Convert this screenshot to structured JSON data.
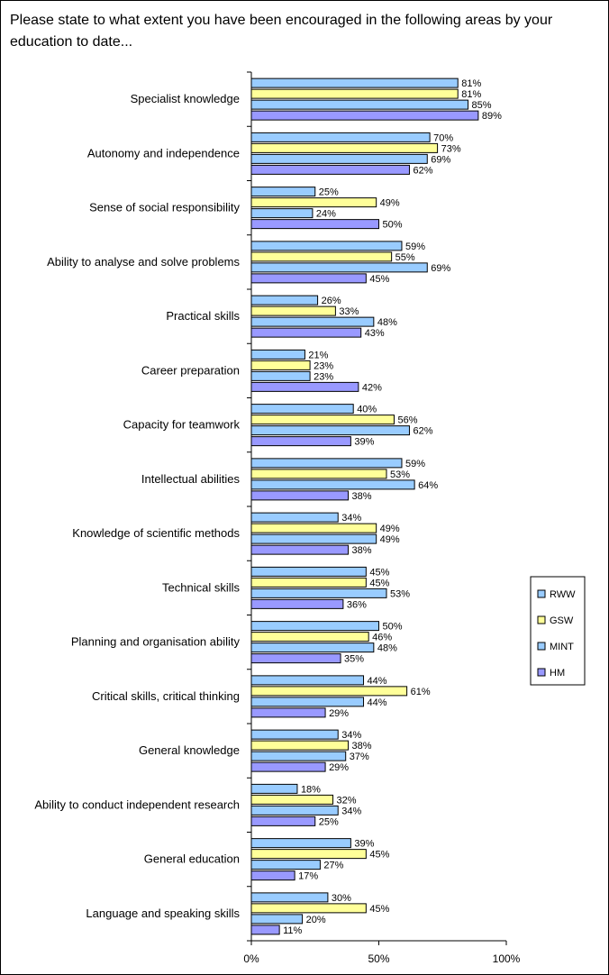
{
  "chart_data": {
    "type": "bar",
    "orientation": "horizontal",
    "title": "Please state to what extent you have been encouraged in the following areas by your education to date...",
    "categories": [
      "Specialist knowledge",
      "Autonomy and independence",
      "Sense of social responsibility",
      "Ability to analyse and solve problems",
      "Practical skills",
      "Career preparation",
      "Capacity for teamwork",
      "Intellectual abilities",
      "Knowledge of scientific methods",
      "Technical skills",
      "Planning and organisation ability",
      "Critical skills, critical thinking",
      "General knowledge",
      "Ability to conduct independent research",
      "General education",
      "Language and speaking skills"
    ],
    "series": [
      {
        "name": "RWW",
        "color": "#99ccff",
        "values": [
          81,
          70,
          25,
          59,
          26,
          21,
          40,
          59,
          34,
          45,
          50,
          44,
          34,
          18,
          39,
          30
        ]
      },
      {
        "name": "GSW",
        "color": "#ffff99",
        "values": [
          81,
          73,
          49,
          55,
          33,
          23,
          56,
          53,
          49,
          45,
          46,
          61,
          38,
          32,
          45,
          45
        ]
      },
      {
        "name": "MINT",
        "color": "#99ccff",
        "values": [
          85,
          69,
          24,
          69,
          48,
          23,
          62,
          64,
          49,
          53,
          48,
          44,
          37,
          34,
          27,
          20
        ]
      },
      {
        "name": "HM",
        "color": "#9999ff",
        "values": [
          89,
          62,
          50,
          45,
          43,
          42,
          39,
          38,
          38,
          36,
          35,
          29,
          29,
          25,
          17,
          11
        ]
      }
    ],
    "value_suffix": "%",
    "xlim": [
      0,
      100
    ],
    "xticks": [
      "0%",
      "50%",
      "100%"
    ],
    "legend_position": "right",
    "grid": false
  }
}
